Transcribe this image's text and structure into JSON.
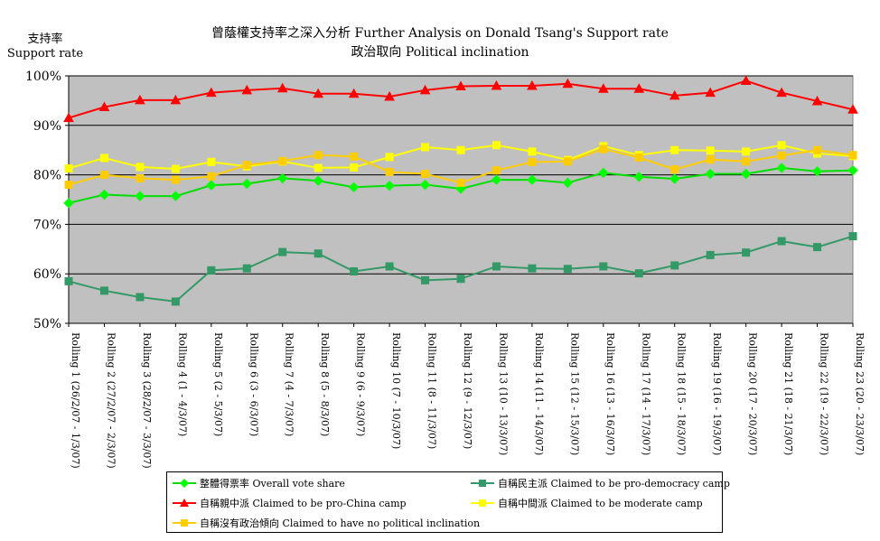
{
  "title_line1": "曾蔭權支持率之深入分析 Further Analysis on Donald Tsang's Support rate",
  "title_line2": "政治取向 Political inclination",
  "ylabel_cn": "支持率",
  "ylabel_en": "Support rate",
  "chart_data": {
    "type": "line",
    "title": "曾蔭權支持率之深入分析 Further Analysis on Donald Tsang's Support rate / 政治取向 Political inclination",
    "ylabel": "支持率 Support rate",
    "xlabel": "",
    "ylim": [
      50,
      100
    ],
    "yticks": [
      "50%",
      "60%",
      "70%",
      "80%",
      "90%",
      "100%"
    ],
    "grid": "horizontal",
    "legend_position": "bottom",
    "plot_background": "#c0c0c0",
    "categories": [
      "Rolling 1 (26/2/07 - 1/3/07)",
      "Rolling 2 (27/2/07 - 2/3/07)",
      "Rolling 3 (28/2/07 - 3/3/07)",
      "Rolling 4 (1 - 4/3/07)",
      "Rolling 5 (2 - 5/3/07)",
      "Rolling 6 (3 - 6/3/07)",
      "Rolling 7 (4 - 7/3/07)",
      "Rolling 8 (5 - 8/3/07)",
      "Rolling 9 (6 - 9/3/07)",
      "Rolling 10 (7 - 10/3/07)",
      "Rolling 11 (8 - 11/3/07)",
      "Rolling 12 (9 - 12/3/07)",
      "Rolling 13 (10 - 13/3/07)",
      "Rolling 14 (11 - 14/3/07)",
      "Rolling 15 (12 - 15/3/07)",
      "Rolling 16 (13 - 16/3/07)",
      "Rolling 17 (14 - 17/3/07)",
      "Rolling 18 (15 - 18/3/07)",
      "Rolling 19 (16 - 19/3/07)",
      "Rolling 20 (17 - 20/3/07)",
      "Rolling 21 (18 - 21/3/07)",
      "Rolling 22 (19 - 22/3/07)",
      "Rolling 23 (20 - 23/3/07)"
    ],
    "series": [
      {
        "name": "整體得票率 Overall vote share",
        "color": "#00ff00",
        "line_color": "#00dd00",
        "marker": "diamond",
        "values": [
          74.3,
          76.0,
          75.7,
          75.7,
          77.9,
          78.2,
          79.3,
          78.8,
          77.5,
          77.8,
          78.0,
          77.2,
          79.0,
          79.0,
          78.4,
          80.4,
          79.6,
          79.2,
          80.2,
          80.2,
          81.4,
          80.7,
          80.9
        ]
      },
      {
        "name": "自稱民主派 Claimed to be pro-democracy camp",
        "color": "#339966",
        "line_color": "#339966",
        "marker": "square",
        "values": [
          58.5,
          56.6,
          55.3,
          54.4,
          60.7,
          61.1,
          64.4,
          64.1,
          60.5,
          61.5,
          58.7,
          59.0,
          61.5,
          61.1,
          61.0,
          61.5,
          60.1,
          61.7,
          63.8,
          64.3,
          66.6,
          65.4,
          67.6
        ]
      },
      {
        "name": "自稱親中派 Claimed to be pro-China camp",
        "color": "#ff0000",
        "line_color": "#ff0000",
        "marker": "triangle",
        "values": [
          91.5,
          93.7,
          95.1,
          95.1,
          96.6,
          97.1,
          97.5,
          96.4,
          96.4,
          95.8,
          97.1,
          97.9,
          98.0,
          98.0,
          98.4,
          97.4,
          97.4,
          96.0,
          96.6,
          99.0,
          96.6,
          94.9,
          93.2
        ]
      },
      {
        "name": "自稱中間派 Claimed to be moderate camp",
        "color": "#ffff00",
        "line_color": "#ffff00",
        "marker": "square",
        "values": [
          81.3,
          83.4,
          81.6,
          81.2,
          82.6,
          81.7,
          82.7,
          81.4,
          81.5,
          83.6,
          85.6,
          85.0,
          86.0,
          84.7,
          83.0,
          85.8,
          84.0,
          85.0,
          84.9,
          84.7,
          86.0,
          84.3,
          83.8
        ]
      },
      {
        "name": "自稱沒有政治傾向 Claimed to have no political inclination",
        "color": "#ffcc00",
        "line_color": "#ffcc00",
        "marker": "square",
        "values": [
          78.0,
          80.0,
          79.3,
          79.0,
          79.7,
          82.0,
          82.8,
          84.0,
          83.7,
          80.6,
          80.2,
          78.4,
          80.9,
          82.6,
          82.7,
          85.2,
          83.5,
          81.1,
          83.1,
          82.7,
          83.9,
          85.0,
          84.0
        ]
      }
    ]
  }
}
